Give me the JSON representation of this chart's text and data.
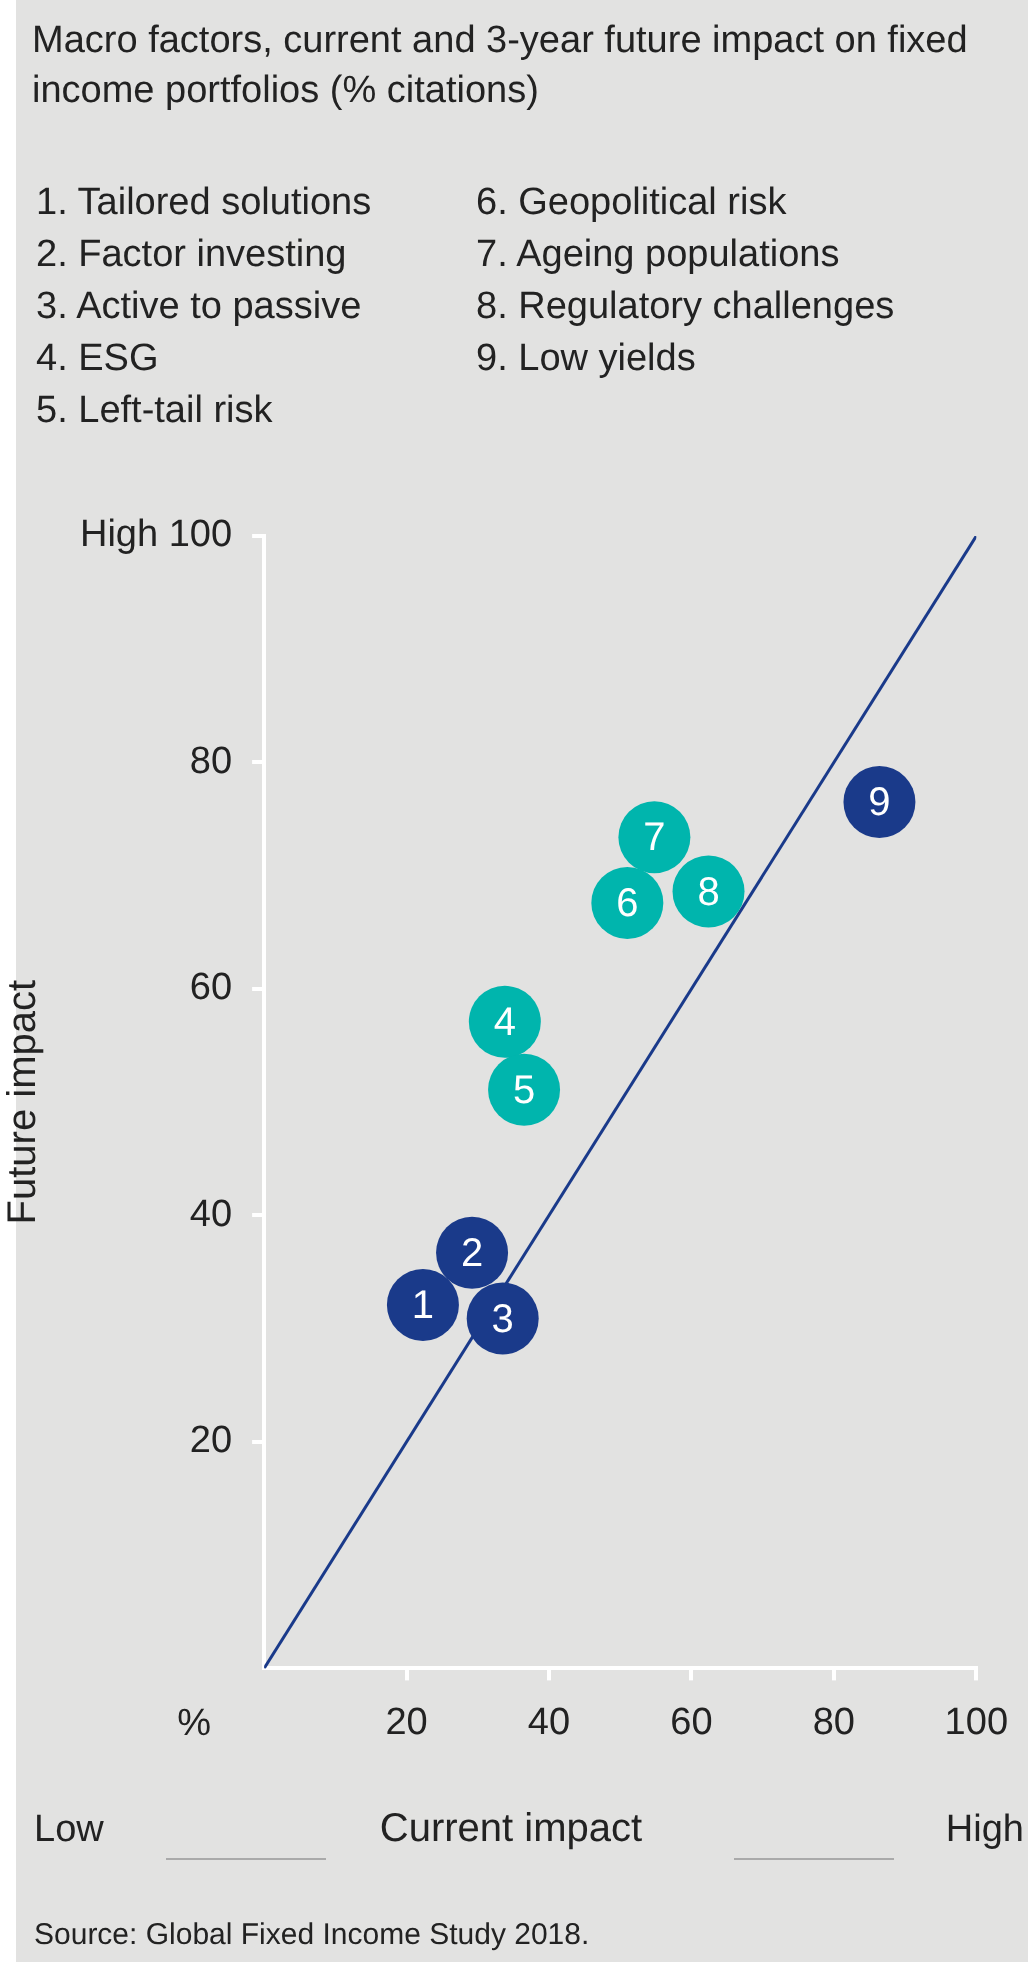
{
  "chart_data": {
    "type": "scatter",
    "title": "Macro factors, current and 3-year future impact on fixed income portfolios (% citations)",
    "xlabel": "Current impact",
    "ylabel": "Future impact",
    "series": [
      {
        "type": "scatter",
        "color": "#1a3a8a",
        "marker": "circle",
        "x": [
          22.3,
          29.2,
          33.5,
          86.4
        ],
        "values": [
          32.1,
          36.7,
          30.9,
          76.5
        ]
      },
      {
        "type": "scatter",
        "color": "#00b5ad",
        "marker": "circle",
        "x": [
          33.8,
          36.5,
          51,
          54.8,
          62.4
        ],
        "values": [
          57.1,
          51.1,
          67.6,
          73.4,
          68.6
        ]
      },
      {
        "type": "line",
        "color": "#1a3a8a",
        "marker": "none",
        "x": [
          0,
          100
        ],
        "values": [
          0,
          100
        ]
      }
    ],
    "xlim": [
      0,
      100
    ],
    "ylim": [
      0,
      100
    ],
    "xticks": [
      20,
      40,
      60,
      80,
      100
    ],
    "yticks": [
      20,
      40,
      60,
      80,
      {
        "value": 100,
        "label": "High 100"
      }
    ],
    "grid": false,
    "legend": false,
    "annotations": [
      "1. Tailored solutions",
      "2. Factor investing",
      "3. Active to passive",
      "4. ESG",
      "5. Left-tail risk",
      "6. Geopolitical risk",
      "7. Ageing populations",
      "8. Regulatory challenges",
      "9. Low yields",
      "%",
      "Low",
      "High",
      "Source: Global Fixed Income Study 2018.",
      {
        "text": "1",
        "x": 22.3,
        "y": 32.1
      },
      {
        "text": "2",
        "x": 29.2,
        "y": 36.7
      },
      {
        "text": "3",
        "x": 33.5,
        "y": 30.9
      },
      {
        "text": "9",
        "x": 86.4,
        "y": 76.5
      },
      {
        "text": "4",
        "x": 33.8,
        "y": 57.1
      },
      {
        "text": "5",
        "x": 36.5,
        "y": 51.1
      },
      {
        "text": "6",
        "x": 51,
        "y": 67.6
      },
      {
        "text": "7",
        "x": 54.8,
        "y": 73.4
      },
      {
        "text": "8",
        "x": 62.4,
        "y": 68.6
      }
    ]
  }
}
